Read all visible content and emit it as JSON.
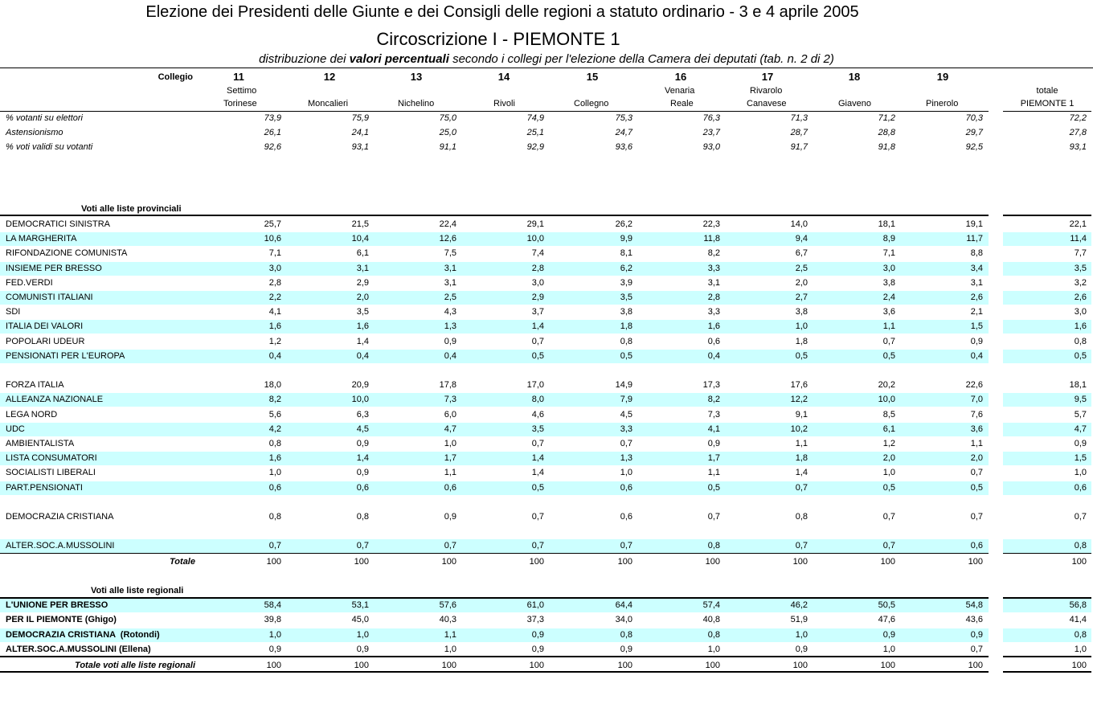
{
  "header": {
    "title": "Elezione dei Presidenti delle Giunte e dei Consigli delle regioni a statuto ordinario - 3 e 4 aprile 2005",
    "subtitle": "Circoscrizione I - PIEMONTE 1",
    "description": {
      "before": "distribuzione dei",
      "bold": "valori percentuali",
      "after": "secondo i collegi per l'elezione della Camera dei deputati (tab. n. 2 di 2)"
    }
  },
  "columns": {
    "label": "Collegio",
    "items": [
      {
        "number": "11",
        "name": [
          "Settimo",
          "Torinese"
        ]
      },
      {
        "number": "12",
        "name": [
          "Moncalieri"
        ]
      },
      {
        "number": "13",
        "name": [
          "Nichelino"
        ]
      },
      {
        "number": "14",
        "name": [
          "Rivoli"
        ]
      },
      {
        "number": "15",
        "name": [
          "Collegno"
        ]
      },
      {
        "number": "16",
        "name": [
          "Venaria",
          "Reale"
        ]
      },
      {
        "number": "17",
        "name": [
          "Rivarolo",
          "Canavese"
        ]
      },
      {
        "number": "18",
        "name": [
          "Giaveno"
        ]
      },
      {
        "number": "19",
        "name": [
          "Pinerolo"
        ]
      }
    ],
    "total": [
      "totale",
      "PIEMONTE 1"
    ]
  },
  "stats": [
    {
      "label": "% votanti su elettori",
      "values": [
        "73,9",
        "75,9",
        "75,0",
        "74,9",
        "75,3",
        "76,3",
        "71,3",
        "71,2",
        "70,3",
        "72,2"
      ]
    },
    {
      "label": "Astensionismo",
      "values": [
        "26,1",
        "24,1",
        "25,0",
        "25,1",
        "24,7",
        "23,7",
        "28,7",
        "28,8",
        "29,7",
        "27,8"
      ]
    },
    {
      "label": "% voti validi su votanti",
      "values": [
        "92,6",
        "93,1",
        "91,1",
        "92,9",
        "93,6",
        "93,0",
        "91,7",
        "91,8",
        "92,5",
        "93,1"
      ]
    }
  ],
  "provincial": {
    "heading": "Voti alle liste provinciali",
    "rows": [
      {
        "label": "DEMOCRATICI SINISTRA",
        "values": [
          "25,7",
          "21,5",
          "22,4",
          "29,1",
          "26,2",
          "22,3",
          "14,0",
          "18,1",
          "19,1",
          "22,1"
        ]
      },
      {
        "label": "LA MARGHERITA",
        "values": [
          "10,6",
          "10,4",
          "12,6",
          "10,0",
          "9,9",
          "11,8",
          "9,4",
          "8,9",
          "11,7",
          "11,4"
        ]
      },
      {
        "label": "RIFONDAZIONE COMUNISTA",
        "values": [
          "7,1",
          "6,1",
          "7,5",
          "7,4",
          "8,1",
          "8,2",
          "6,7",
          "7,1",
          "8,8",
          "7,7"
        ]
      },
      {
        "label": "INSIEME PER BRESSO",
        "values": [
          "3,0",
          "3,1",
          "3,1",
          "2,8",
          "6,2",
          "3,3",
          "2,5",
          "3,0",
          "3,4",
          "3,5"
        ]
      },
      {
        "label": "FED.VERDI",
        "values": [
          "2,8",
          "2,9",
          "3,1",
          "3,0",
          "3,9",
          "3,1",
          "2,0",
          "3,8",
          "3,1",
          "3,2"
        ]
      },
      {
        "label": "COMUNISTI ITALIANI",
        "values": [
          "2,2",
          "2,0",
          "2,5",
          "2,9",
          "3,5",
          "2,8",
          "2,7",
          "2,4",
          "2,6",
          "2,6"
        ]
      },
      {
        "label": "SDI",
        "values": [
          "4,1",
          "3,5",
          "4,3",
          "3,7",
          "3,8",
          "3,3",
          "3,8",
          "3,6",
          "2,1",
          "3,0"
        ]
      },
      {
        "label": "ITALIA DEI VALORI",
        "values": [
          "1,6",
          "1,6",
          "1,3",
          "1,4",
          "1,8",
          "1,6",
          "1,0",
          "1,1",
          "1,5",
          "1,6"
        ]
      },
      {
        "label": "POPOLARI UDEUR",
        "values": [
          "1,2",
          "1,4",
          "0,9",
          "0,7",
          "0,8",
          "0,6",
          "1,8",
          "0,7",
          "0,9",
          "0,8"
        ]
      },
      {
        "label": "PENSIONATI PER L'EUROPA",
        "values": [
          "0,4",
          "0,4",
          "0,4",
          "0,5",
          "0,5",
          "0,4",
          "0,5",
          "0,5",
          "0,4",
          "0,5"
        ]
      },
      {
        "label": "FORZA ITALIA",
        "values": [
          "18,0",
          "20,9",
          "17,8",
          "17,0",
          "14,9",
          "17,3",
          "17,6",
          "20,2",
          "22,6",
          "18,1"
        ]
      },
      {
        "label": "ALLEANZA NAZIONALE",
        "values": [
          "8,2",
          "10,0",
          "7,3",
          "8,0",
          "7,9",
          "8,2",
          "12,2",
          "10,0",
          "7,0",
          "9,5"
        ]
      },
      {
        "label": "LEGA NORD",
        "values": [
          "5,6",
          "6,3",
          "6,0",
          "4,6",
          "4,5",
          "7,3",
          "9,1",
          "8,5",
          "7,6",
          "5,7"
        ]
      },
      {
        "label": "UDC",
        "values": [
          "4,2",
          "4,5",
          "4,7",
          "3,5",
          "3,3",
          "4,1",
          "10,2",
          "6,1",
          "3,6",
          "4,7"
        ]
      },
      {
        "label": "AMBIENTALISTA",
        "values": [
          "0,8",
          "0,9",
          "1,0",
          "0,7",
          "0,7",
          "0,9",
          "1,1",
          "1,2",
          "1,1",
          "0,9"
        ]
      },
      {
        "label": "LISTA CONSUMATORI",
        "values": [
          "1,6",
          "1,4",
          "1,7",
          "1,4",
          "1,3",
          "1,7",
          "1,8",
          "2,0",
          "2,0",
          "1,5"
        ]
      },
      {
        "label": "SOCIALISTI LIBERALI",
        "values": [
          "1,0",
          "0,9",
          "1,1",
          "1,4",
          "1,0",
          "1,1",
          "1,4",
          "1,0",
          "0,7",
          "1,0"
        ]
      },
      {
        "label": "PART.PENSIONATI",
        "values": [
          "0,6",
          "0,6",
          "0,6",
          "0,5",
          "0,6",
          "0,5",
          "0,7",
          "0,5",
          "0,5",
          "0,6"
        ]
      },
      {
        "label": "DEMOCRAZIA CRISTIANA",
        "values": [
          "0,8",
          "0,8",
          "0,9",
          "0,7",
          "0,6",
          "0,7",
          "0,8",
          "0,7",
          "0,7",
          "0,7"
        ]
      },
      {
        "label": "ALTER.SOC.A.MUSSOLINI",
        "values": [
          "0,7",
          "0,7",
          "0,7",
          "0,7",
          "0,7",
          "0,8",
          "0,7",
          "0,7",
          "0,6",
          "0,8"
        ]
      }
    ],
    "total": {
      "label": "Totale",
      "values": [
        "100",
        "100",
        "100",
        "100",
        "100",
        "100",
        "100",
        "100",
        "100",
        "100"
      ]
    }
  },
  "regional": {
    "heading": "Voti alle liste regionali",
    "rows": [
      {
        "label": "L'UNIONE PER BRESSO",
        "values": [
          "58,4",
          "53,1",
          "57,6",
          "61,0",
          "64,4",
          "57,4",
          "46,2",
          "50,5",
          "54,8",
          "56,8"
        ]
      },
      {
        "label": "PER IL PIEMONTE (Ghigo)",
        "values": [
          "39,8",
          "45,0",
          "40,3",
          "37,3",
          "34,0",
          "40,8",
          "51,9",
          "47,6",
          "43,6",
          "41,4"
        ]
      },
      {
        "label": "DEMOCRAZIA CRISTIANA  (Rotondi)",
        "values": [
          "1,0",
          "1,0",
          "1,1",
          "0,9",
          "0,8",
          "0,8",
          "1,0",
          "0,9",
          "0,9",
          "0,8"
        ]
      },
      {
        "label": "ALTER.SOC.A.MUSSOLINI (Ellena)",
        "values": [
          "0,9",
          "0,9",
          "1,0",
          "0,9",
          "0,9",
          "1,0",
          "0,9",
          "1,0",
          "0,7",
          "1,0"
        ]
      }
    ],
    "total": {
      "label": "Totale voti alle liste regionali",
      "values": [
        "100",
        "100",
        "100",
        "100",
        "100",
        "100",
        "100",
        "100",
        "100",
        "100"
      ]
    }
  }
}
